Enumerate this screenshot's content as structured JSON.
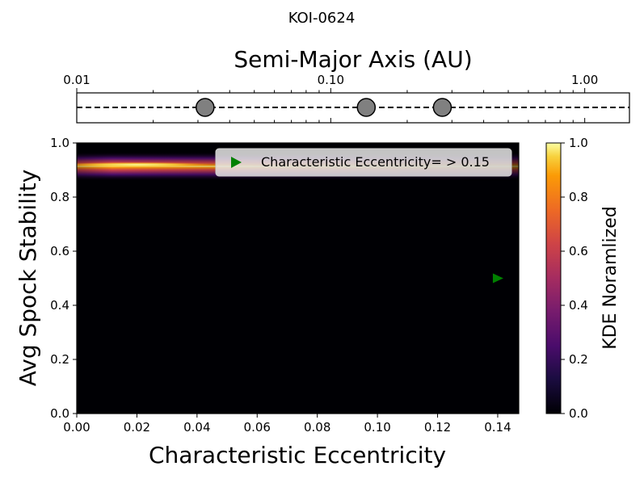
{
  "figure_title": "KOI-0624",
  "chart_data": [
    {
      "type": "scatter",
      "panel": "orbit-strip",
      "xlabel": "Semi-Major Axis (AU)",
      "xscale": "log",
      "xlim": [
        0.01,
        1.5
      ],
      "xticks": [
        {
          "value": 0.01,
          "label": "0.01"
        },
        {
          "value": 0.1,
          "label": "0.10"
        },
        {
          "value": 1.0,
          "label": "1.00"
        }
      ],
      "planets": [
        {
          "a": 0.032
        },
        {
          "a": 0.138
        },
        {
          "a": 0.275
        }
      ],
      "planet_color": "#808080",
      "line_style": "dashed"
    },
    {
      "type": "heatmap",
      "panel": "stability-kde",
      "xlabel": "Characteristic Eccentricity",
      "ylabel": "Avg Spock Stability",
      "xlim": [
        0.0,
        0.147
      ],
      "ylim": [
        0.0,
        1.0
      ],
      "xticks": [
        "0.00",
        "0.02",
        "0.04",
        "0.06",
        "0.08",
        "0.10",
        "0.12",
        "0.14"
      ],
      "yticks": [
        "0.0",
        "0.2",
        "0.4",
        "0.6",
        "0.8",
        "1.0"
      ],
      "density_band": {
        "stability_center": 0.92,
        "stability_spread": 0.012,
        "peak_eccentricity": 0.012
      },
      "colormap": "inferno",
      "marker": {
        "x": 0.14,
        "y": 0.5,
        "shape": "triangle-right",
        "color": "#008000"
      },
      "legend": {
        "label": "Characteristic Eccentricity= > 0.15",
        "placement": "upper right"
      },
      "colorbar": {
        "label": "KDE Noramlized",
        "range": [
          0.0,
          1.0
        ],
        "ticks": [
          "0.0",
          "0.2",
          "0.4",
          "0.6",
          "0.8",
          "1.0"
        ]
      }
    }
  ]
}
